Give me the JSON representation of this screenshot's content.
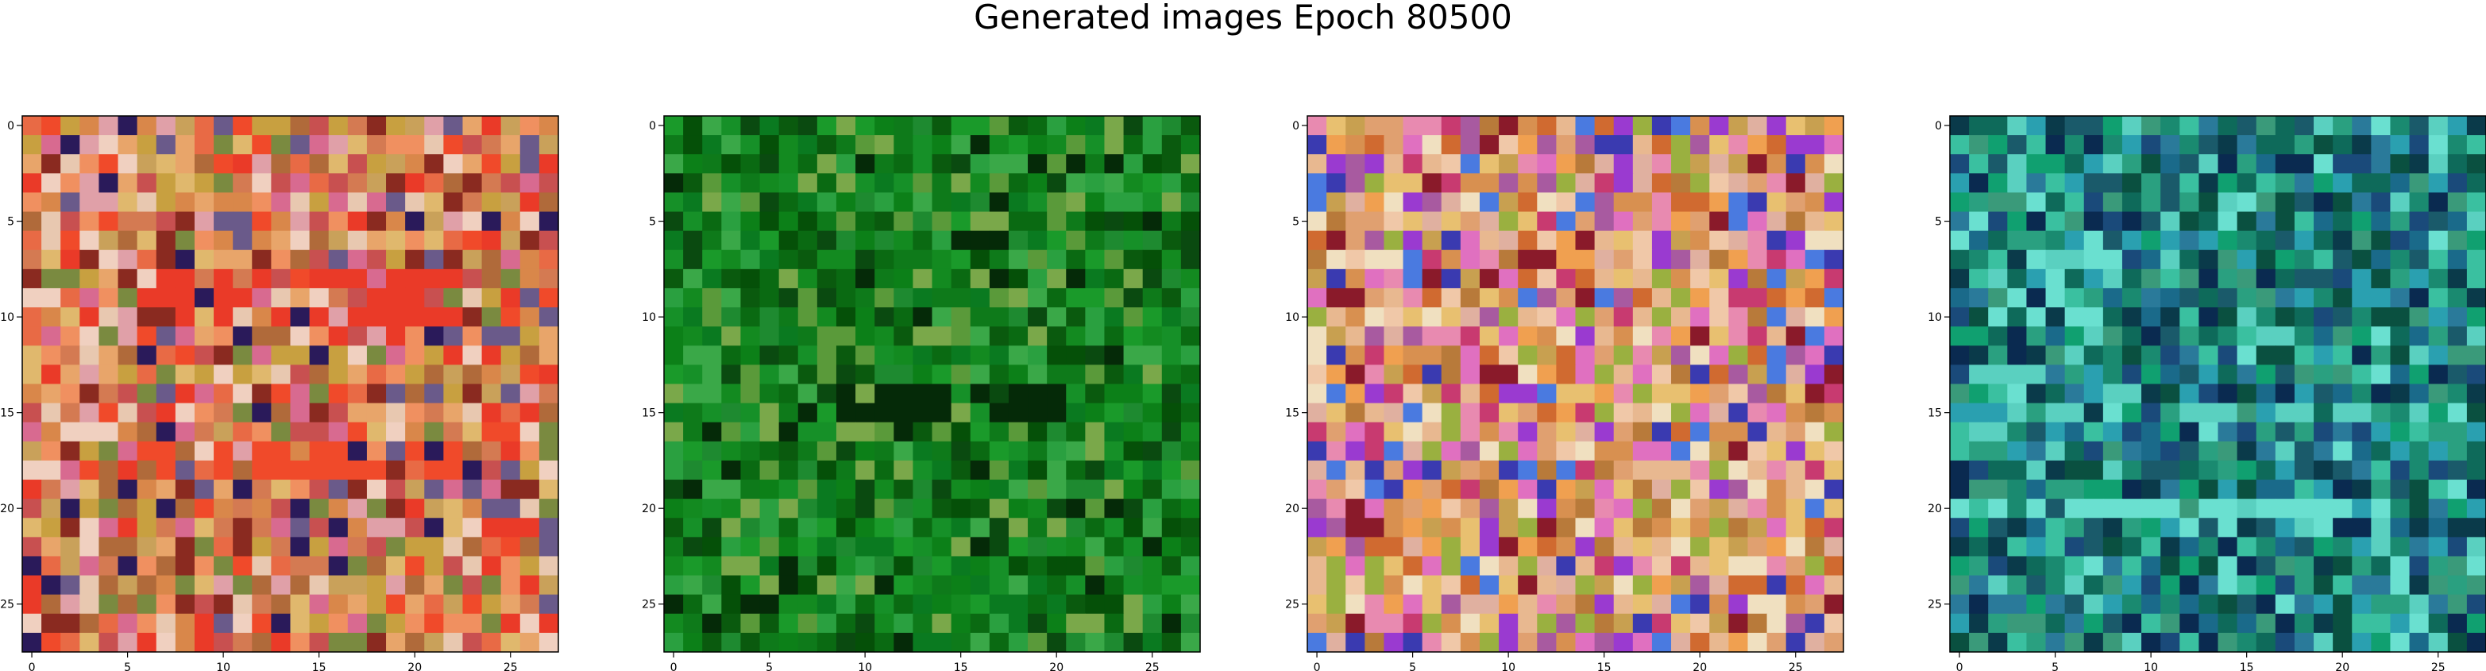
{
  "figure": {
    "title": "Generated images Epoch 80500"
  },
  "chart_data": [
    {
      "type": "heatmap",
      "title": "",
      "xlabel": "",
      "ylabel": "",
      "grid_size": 28,
      "xlim": [
        -0.5,
        27.5
      ],
      "ylim": [
        27.5,
        -0.5
      ],
      "xticks": [
        0,
        5,
        10,
        15,
        20,
        25
      ],
      "yticks": [
        0,
        5,
        10,
        15,
        20,
        25
      ],
      "grid": false,
      "palette": [
        "#e8a56a",
        "#d9874a",
        "#c9a15a",
        "#e0b86d",
        "#e86a45",
        "#f04a2a",
        "#ea3a28",
        "#c8a040",
        "#e8c8b0",
        "#d47a52",
        "#b06a3a",
        "#f09060",
        "#c85050",
        "#8a2a20",
        "#e0a0a8",
        "#6a5a8a",
        "#2a1a5a",
        "#7a8a40",
        "#d86a90",
        "#f0d0c0"
      ],
      "features": [
        {
          "name": "warm-band",
          "rows": [
            8,
            9,
            10
          ],
          "cols": [
            6,
            22
          ],
          "color": "#ea3a28"
        },
        {
          "name": "warm-band",
          "rows": [
            17,
            18
          ],
          "cols": [
            6,
            22
          ],
          "color": "#f04a2a"
        }
      ],
      "seed": 11
    },
    {
      "type": "heatmap",
      "title": "",
      "xlabel": "",
      "ylabel": "",
      "grid_size": 28,
      "xlim": [
        -0.5,
        27.5
      ],
      "ylim": [
        27.5,
        -0.5
      ],
      "xticks": [
        0,
        5,
        10,
        15,
        20,
        25
      ],
      "yticks": [
        0,
        5,
        10,
        15,
        20,
        25
      ],
      "grid": false,
      "palette": [
        "#0a6a12",
        "#0e7a1a",
        "#138a20",
        "#1a9a2a",
        "#0a5a0e",
        "#055008",
        "#2aa040",
        "#0c8018",
        "#169028",
        "#3aa848",
        "#5a9a3a",
        "#0a4a10",
        "#1e8a30",
        "#0a7a20",
        "#7aa84a",
        "#052a08"
      ],
      "features": [
        {
          "name": "dark-streak",
          "rows": [
            14,
            15
          ],
          "cols": [
            9,
            20
          ],
          "color": "#052a08"
        }
      ],
      "seed": 23
    },
    {
      "type": "heatmap",
      "title": "",
      "xlabel": "",
      "ylabel": "",
      "grid_size": 28,
      "xlim": [
        -0.5,
        27.5
      ],
      "ylim": [
        27.5,
        -0.5
      ],
      "xticks": [
        0,
        5,
        10,
        15,
        20,
        25
      ],
      "yticks": [
        0,
        5,
        10,
        15,
        20,
        25
      ],
      "grid": false,
      "palette": [
        "#e0a070",
        "#d89050",
        "#e8b890",
        "#c8a050",
        "#f0c8a8",
        "#e88ab0",
        "#a85aa0",
        "#9a3ad0",
        "#3a3ab0",
        "#4a7ae0",
        "#c83a70",
        "#8a1a2a",
        "#e8c070",
        "#f0e0c0",
        "#b87a3a",
        "#d06a30",
        "#e070c0",
        "#9ab040",
        "#e0b0a0",
        "#f0a050"
      ],
      "features": [],
      "seed": 37
    },
    {
      "type": "heatmap",
      "title": "",
      "xlabel": "",
      "ylabel": "",
      "grid_size": 28,
      "xlim": [
        -0.5,
        27.5
      ],
      "ylim": [
        27.5,
        -0.5
      ],
      "xticks": [
        0,
        5,
        10,
        15,
        20,
        25
      ],
      "yticks": [
        0,
        5,
        10,
        15,
        20,
        25
      ],
      "grid": false,
      "palette": [
        "#1a8a70",
        "#0e6a5a",
        "#2aa080",
        "#1a5a6a",
        "#0a3a4a",
        "#2a7a9a",
        "#3ac0a0",
        "#10a070",
        "#0a2a50",
        "#1a4a7a",
        "#5ad0c0",
        "#2aa0b0",
        "#0a5040",
        "#3a9a7a",
        "#6ae0d0",
        "#1a6a8a"
      ],
      "features": [
        {
          "name": "light-band",
          "rows": [
            15
          ],
          "cols": [
            4,
            24
          ],
          "color": "#5ad0c0"
        },
        {
          "name": "light-band",
          "rows": [
            20
          ],
          "cols": [
            4,
            24
          ],
          "color": "#6ae0d0"
        }
      ],
      "seed": 53
    }
  ]
}
